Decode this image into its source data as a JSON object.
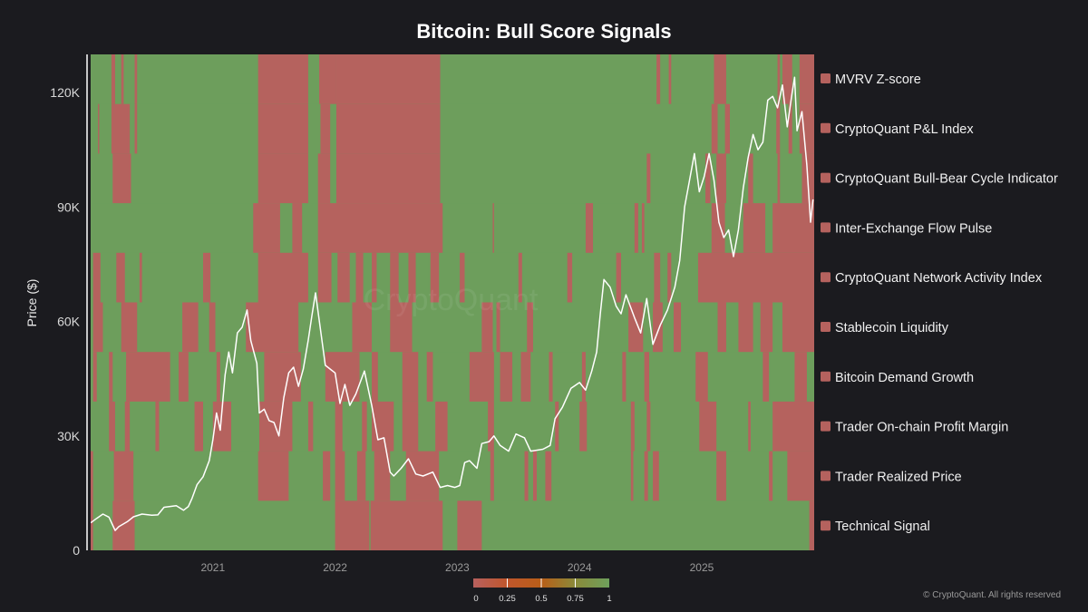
{
  "chart_data": {
    "type": "heatmap",
    "title": "Bitcoin: Bull Score Signals",
    "ylabel": "Price ($)",
    "ylim": [
      0,
      130000
    ],
    "yticks": [
      {
        "value": 0,
        "label": "0"
      },
      {
        "value": 30000,
        "label": "30K"
      },
      {
        "value": 60000,
        "label": "60K"
      },
      {
        "value": 90000,
        "label": "90K"
      },
      {
        "value": 120000,
        "label": "120K"
      }
    ],
    "xlim": [
      2020.0,
      2025.92
    ],
    "xticks": [
      {
        "value": 2021.0,
        "label": "2021"
      },
      {
        "value": 2022.0,
        "label": "2022"
      },
      {
        "value": 2023.0,
        "label": "2023"
      },
      {
        "value": 2024.0,
        "label": "2024"
      },
      {
        "value": 2025.0,
        "label": "2025"
      }
    ],
    "legend_position": "right",
    "signals": [
      {
        "name": "MVRV Z-score",
        "bearish_periods": [
          [
            2020.17,
            2020.2
          ],
          [
            2020.25,
            2020.27
          ],
          [
            2020.36,
            2020.38
          ],
          [
            2021.37,
            2021.78
          ],
          [
            2021.87,
            2022.01
          ],
          [
            2022.01,
            2022.86
          ],
          [
            2024.63,
            2024.66
          ],
          [
            2024.73,
            2024.75
          ],
          [
            2025.1,
            2025.2
          ],
          [
            2025.62,
            2025.64
          ],
          [
            2025.66,
            2025.74
          ],
          [
            2025.8,
            2025.92
          ]
        ]
      },
      {
        "name": "CryptoQuant P&L Index",
        "bearish_periods": [
          [
            2020.06,
            2020.07
          ],
          [
            2020.17,
            2020.32
          ],
          [
            2020.36,
            2020.38
          ],
          [
            2021.37,
            2021.78
          ],
          [
            2021.88,
            2021.96
          ],
          [
            2022.01,
            2022.86
          ],
          [
            2025.08,
            2025.13
          ],
          [
            2025.19,
            2025.23
          ],
          [
            2025.61,
            2025.64
          ],
          [
            2025.71,
            2025.74
          ],
          [
            2025.8,
            2025.92
          ]
        ]
      },
      {
        "name": "CryptoQuant Bull-Bear Cycle Indicator",
        "bearish_periods": [
          [
            2020.18,
            2020.33
          ],
          [
            2021.37,
            2021.78
          ],
          [
            2021.86,
            2021.96
          ],
          [
            2022.01,
            2022.86
          ],
          [
            2024.55,
            2024.58
          ],
          [
            2025.03,
            2025.07
          ],
          [
            2025.12,
            2025.2
          ],
          [
            2025.38,
            2025.42
          ],
          [
            2025.62,
            2025.64
          ],
          [
            2025.82,
            2025.92
          ]
        ]
      },
      {
        "name": "Inter-Exchange Flow Pulse",
        "bearish_periods": [
          [
            2021.33,
            2021.55
          ],
          [
            2021.65,
            2021.73
          ],
          [
            2021.86,
            2022.88
          ],
          [
            2023.29,
            2023.3
          ],
          [
            2024.05,
            2024.11
          ],
          [
            2024.45,
            2024.48
          ],
          [
            2024.51,
            2024.53
          ],
          [
            2025.08,
            2025.19
          ],
          [
            2025.34,
            2025.52
          ],
          [
            2025.58,
            2025.92
          ]
        ]
      },
      {
        "name": "CryptoQuant Network Activity Index",
        "bearish_periods": [
          [
            2020.02,
            2020.08
          ],
          [
            2020.21,
            2020.28
          ],
          [
            2020.4,
            2020.42
          ],
          [
            2020.92,
            2020.98
          ],
          [
            2021.37,
            2021.78
          ],
          [
            2021.86,
            2021.97
          ],
          [
            2022.02,
            2022.12
          ],
          [
            2022.17,
            2022.23
          ],
          [
            2022.3,
            2022.34
          ],
          [
            2022.45,
            2022.52
          ],
          [
            2022.6,
            2022.66
          ],
          [
            2022.78,
            2022.85
          ],
          [
            2023.02,
            2023.06
          ],
          [
            2023.5,
            2023.53
          ],
          [
            2023.9,
            2023.94
          ],
          [
            2024.3,
            2024.34
          ],
          [
            2024.61,
            2024.66
          ],
          [
            2024.72,
            2024.75
          ],
          [
            2024.97,
            2025.92
          ]
        ]
      },
      {
        "name": "Stablecoin Liquidity",
        "bearish_periods": [
          [
            2020.02,
            2020.1
          ],
          [
            2020.25,
            2020.38
          ],
          [
            2020.75,
            2020.88
          ],
          [
            2020.97,
            2021.02
          ],
          [
            2021.27,
            2021.7
          ],
          [
            2022.14,
            2022.3
          ],
          [
            2022.45,
            2022.63
          ],
          [
            2023.2,
            2023.29
          ],
          [
            2023.32,
            2023.35
          ],
          [
            2023.57,
            2023.62
          ],
          [
            2024.4,
            2024.52
          ],
          [
            2024.6,
            2024.68
          ],
          [
            2024.77,
            2024.83
          ],
          [
            2025.13,
            2025.2
          ],
          [
            2025.3,
            2025.42
          ],
          [
            2025.48,
            2025.58
          ],
          [
            2025.66,
            2025.92
          ]
        ]
      },
      {
        "name": "Bitcoin Demand Growth",
        "bearish_periods": [
          [
            2020.02,
            2020.05
          ],
          [
            2020.15,
            2020.18
          ],
          [
            2020.29,
            2020.65
          ],
          [
            2020.72,
            2020.8
          ],
          [
            2021.03,
            2021.06
          ],
          [
            2021.42,
            2021.72
          ],
          [
            2021.92,
            2022.2
          ],
          [
            2022.3,
            2022.35
          ],
          [
            2022.55,
            2022.68
          ],
          [
            2022.75,
            2022.8
          ],
          [
            2023.1,
            2023.3
          ],
          [
            2023.35,
            2023.45
          ],
          [
            2023.52,
            2023.6
          ],
          [
            2023.75,
            2023.78
          ],
          [
            2024.02,
            2024.05
          ],
          [
            2024.35,
            2024.38
          ],
          [
            2024.53,
            2024.57
          ],
          [
            2024.95,
            2025.05
          ],
          [
            2025.5,
            2025.55
          ],
          [
            2025.76,
            2025.86
          ]
        ]
      },
      {
        "name": "Trader On-chain Profit Margin",
        "bearish_periods": [
          [
            2020.15,
            2020.2
          ],
          [
            2020.28,
            2020.32
          ],
          [
            2020.53,
            2020.56
          ],
          [
            2020.85,
            2020.92
          ],
          [
            2021.0,
            2021.15
          ],
          [
            2021.38,
            2021.65
          ],
          [
            2021.78,
            2021.82
          ],
          [
            2022.0,
            2022.06
          ],
          [
            2022.22,
            2022.26
          ],
          [
            2022.3,
            2022.48
          ],
          [
            2022.55,
            2022.68
          ],
          [
            2022.82,
            2022.92
          ],
          [
            2023.25,
            2023.3
          ],
          [
            2023.8,
            2023.83
          ],
          [
            2024.0,
            2024.06
          ],
          [
            2024.42,
            2024.45
          ],
          [
            2024.55,
            2024.58
          ],
          [
            2024.98,
            2025.12
          ],
          [
            2025.38,
            2025.4
          ],
          [
            2025.58,
            2025.92
          ]
        ]
      },
      {
        "name": "Trader Realized Price",
        "bearish_periods": [
          [
            2020.0,
            2020.02
          ],
          [
            2020.19,
            2020.35
          ],
          [
            2021.37,
            2021.62
          ],
          [
            2021.9,
            2021.96
          ],
          [
            2022.0,
            2022.08
          ],
          [
            2022.18,
            2022.25
          ],
          [
            2022.32,
            2022.45
          ],
          [
            2022.58,
            2022.85
          ],
          [
            2023.27,
            2023.3
          ],
          [
            2023.55,
            2023.58
          ],
          [
            2023.62,
            2023.65
          ],
          [
            2023.72,
            2023.77
          ],
          [
            2024.42,
            2024.44
          ],
          [
            2024.53,
            2024.56
          ],
          [
            2024.6,
            2024.65
          ],
          [
            2025.12,
            2025.2
          ],
          [
            2025.55,
            2025.58
          ],
          [
            2025.7,
            2025.92
          ]
        ]
      },
      {
        "name": "Technical Signal",
        "bearish_periods": [
          [
            2020.0,
            2020.02
          ],
          [
            2020.18,
            2020.36
          ],
          [
            2022.0,
            2022.28
          ],
          [
            2022.29,
            2022.88
          ],
          [
            2023.0,
            2023.2
          ],
          [
            2025.88,
            2025.92
          ]
        ]
      }
    ],
    "price_series": [
      [
        2020.0,
        7200
      ],
      [
        2020.05,
        8400
      ],
      [
        2020.1,
        9500
      ],
      [
        2020.15,
        8700
      ],
      [
        2020.2,
        5200
      ],
      [
        2020.23,
        6200
      ],
      [
        2020.3,
        7500
      ],
      [
        2020.35,
        8800
      ],
      [
        2020.42,
        9500
      ],
      [
        2020.5,
        9200
      ],
      [
        2020.55,
        9300
      ],
      [
        2020.6,
        11300
      ],
      [
        2020.7,
        11700
      ],
      [
        2020.76,
        10500
      ],
      [
        2020.8,
        11500
      ],
      [
        2020.83,
        13700
      ],
      [
        2020.87,
        17200
      ],
      [
        2020.92,
        19300
      ],
      [
        2020.97,
        23500
      ],
      [
        2021.0,
        29000
      ],
      [
        2021.03,
        36000
      ],
      [
        2021.06,
        31500
      ],
      [
        2021.1,
        46000
      ],
      [
        2021.13,
        52000
      ],
      [
        2021.16,
        46500
      ],
      [
        2021.2,
        57000
      ],
      [
        2021.24,
        58500
      ],
      [
        2021.28,
        63000
      ],
      [
        2021.31,
        55000
      ],
      [
        2021.36,
        49000
      ],
      [
        2021.38,
        36000
      ],
      [
        2021.42,
        37000
      ],
      [
        2021.46,
        34000
      ],
      [
        2021.5,
        33500
      ],
      [
        2021.54,
        30000
      ],
      [
        2021.58,
        40000
      ],
      [
        2021.62,
        46500
      ],
      [
        2021.66,
        48000
      ],
      [
        2021.7,
        43000
      ],
      [
        2021.74,
        47500
      ],
      [
        2021.78,
        55000
      ],
      [
        2021.81,
        61500
      ],
      [
        2021.84,
        67500
      ],
      [
        2021.88,
        58000
      ],
      [
        2021.92,
        48500
      ],
      [
        2021.96,
        47500
      ],
      [
        2022.0,
        46500
      ],
      [
        2022.04,
        38500
      ],
      [
        2022.08,
        43500
      ],
      [
        2022.12,
        38000
      ],
      [
        2022.17,
        41000
      ],
      [
        2022.24,
        47000
      ],
      [
        2022.3,
        38000
      ],
      [
        2022.35,
        29000
      ],
      [
        2022.4,
        29500
      ],
      [
        2022.45,
        20500
      ],
      [
        2022.48,
        19500
      ],
      [
        2022.54,
        21500
      ],
      [
        2022.6,
        24000
      ],
      [
        2022.66,
        20000
      ],
      [
        2022.72,
        19500
      ],
      [
        2022.8,
        20500
      ],
      [
        2022.86,
        16500
      ],
      [
        2022.92,
        17000
      ],
      [
        2022.98,
        16500
      ],
      [
        2023.02,
        17000
      ],
      [
        2023.06,
        23000
      ],
      [
        2023.1,
        23500
      ],
      [
        2023.16,
        21500
      ],
      [
        2023.2,
        28000
      ],
      [
        2023.26,
        28500
      ],
      [
        2023.3,
        30000
      ],
      [
        2023.35,
        27500
      ],
      [
        2023.42,
        26000
      ],
      [
        2023.48,
        30500
      ],
      [
        2023.55,
        29500
      ],
      [
        2023.6,
        26000
      ],
      [
        2023.7,
        26500
      ],
      [
        2023.76,
        27500
      ],
      [
        2023.8,
        34500
      ],
      [
        2023.86,
        37500
      ],
      [
        2023.93,
        42500
      ],
      [
        2024.0,
        44000
      ],
      [
        2024.05,
        42000
      ],
      [
        2024.1,
        47000
      ],
      [
        2024.14,
        52000
      ],
      [
        2024.17,
        62000
      ],
      [
        2024.2,
        71000
      ],
      [
        2024.25,
        69000
      ],
      [
        2024.3,
        64000
      ],
      [
        2024.34,
        62000
      ],
      [
        2024.38,
        67000
      ],
      [
        2024.45,
        61000
      ],
      [
        2024.5,
        57000
      ],
      [
        2024.55,
        66000
      ],
      [
        2024.6,
        54000
      ],
      [
        2024.66,
        59000
      ],
      [
        2024.72,
        63000
      ],
      [
        2024.78,
        69000
      ],
      [
        2024.82,
        76000
      ],
      [
        2024.86,
        90000
      ],
      [
        2024.9,
        97000
      ],
      [
        2024.94,
        104000
      ],
      [
        2024.98,
        94000
      ],
      [
        2025.02,
        98000
      ],
      [
        2025.06,
        104000
      ],
      [
        2025.1,
        97000
      ],
      [
        2025.14,
        86000
      ],
      [
        2025.18,
        82000
      ],
      [
        2025.22,
        84000
      ],
      [
        2025.26,
        77000
      ],
      [
        2025.3,
        84000
      ],
      [
        2025.34,
        95000
      ],
      [
        2025.38,
        103000
      ],
      [
        2025.42,
        109000
      ],
      [
        2025.46,
        105000
      ],
      [
        2025.5,
        107000
      ],
      [
        2025.54,
        118000
      ],
      [
        2025.58,
        119000
      ],
      [
        2025.62,
        116000
      ],
      [
        2025.66,
        122000
      ],
      [
        2025.7,
        111000
      ],
      [
        2025.74,
        120000
      ],
      [
        2025.76,
        124000
      ],
      [
        2025.78,
        110000
      ],
      [
        2025.82,
        115000
      ],
      [
        2025.86,
        101000
      ],
      [
        2025.89,
        86000
      ],
      [
        2025.91,
        92000
      ]
    ],
    "colorbar": {
      "ticks": [
        "0",
        "0.25",
        "0.5",
        "0.75",
        "1"
      ],
      "colors": [
        "#b7605e",
        "#c0562c",
        "#b85e18",
        "#8a8a3a",
        "#6ea05c"
      ]
    },
    "colors": {
      "bullish": "#6d9e5c",
      "bearish": "#b5625e",
      "price_line": "#ffffff",
      "legend_swatch": "#b5625e"
    }
  },
  "watermark": "CryptoQuant",
  "copyright": "© CryptoQuant. All rights reserved"
}
